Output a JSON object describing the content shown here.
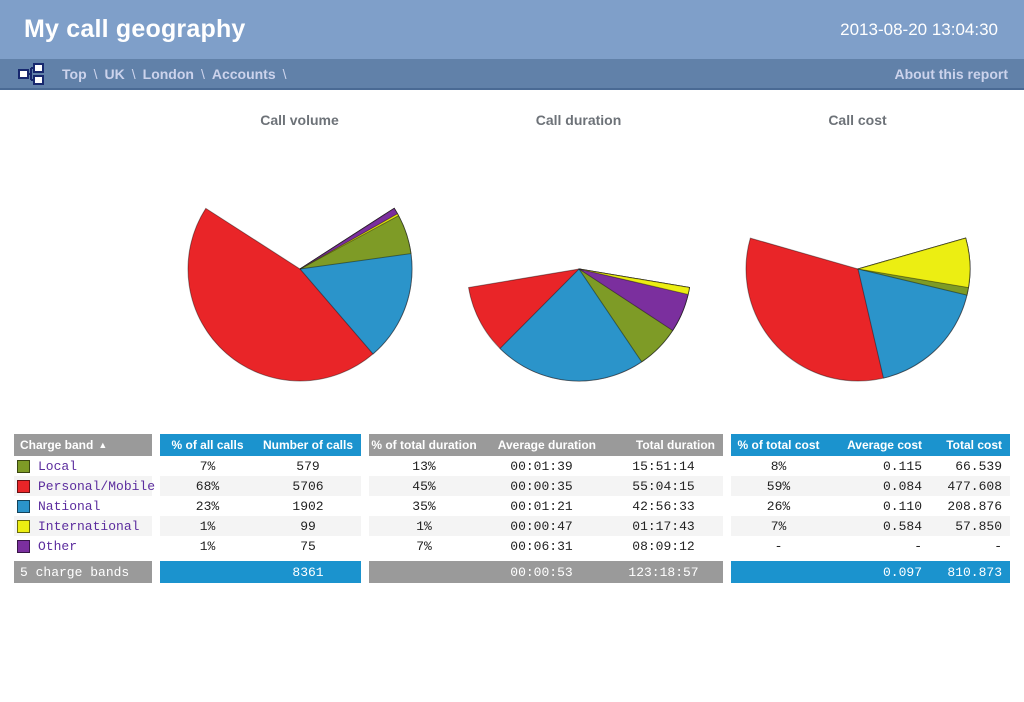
{
  "header": {
    "title": "My call geography",
    "timestamp": "2013-08-20  13:04:30"
  },
  "breadcrumb": {
    "items": [
      "Top",
      "UK",
      "London",
      "Accounts"
    ],
    "separator": "\\",
    "about_label": "About this report"
  },
  "colors": {
    "banner": "#7f9fc9",
    "breadcrumb_bar": "#6181a9",
    "table_header_blue": "#1b93ce",
    "table_header_gray": "#9a9a9a",
    "bands": {
      "Local": "#7e9b26",
      "Personal/Mobile": "#e92528",
      "National": "#2b94ca",
      "International": "#ecee12",
      "Other": "#7b2f9e"
    }
  },
  "chart_data": [
    {
      "type": "pie",
      "title": "Call volume",
      "slices": [
        {
          "label": "Local",
          "value": 579,
          "pct": 6.9
        },
        {
          "label": "Personal/Mobile",
          "value": 5706,
          "pct": 68.2
        },
        {
          "label": "National",
          "value": 1902,
          "pct": 22.8
        },
        {
          "label": "International",
          "value": 99,
          "pct": 1.2
        },
        {
          "label": "Other",
          "value": 75,
          "pct": 0.9
        }
      ]
    },
    {
      "type": "pie",
      "title": "Call duration",
      "slices": [
        {
          "label": "Local",
          "value": "15:51:14",
          "pct": 12.9
        },
        {
          "label": "Personal/Mobile",
          "value": "55:04:15",
          "pct": 44.7
        },
        {
          "label": "National",
          "value": "42:56:33",
          "pct": 34.8
        },
        {
          "label": "International",
          "value": "01:17:43",
          "pct": 1.0
        },
        {
          "label": "Other",
          "value": "08:09:12",
          "pct": 6.6
        }
      ]
    },
    {
      "type": "pie",
      "title": "Call cost",
      "slices": [
        {
          "label": "Local",
          "value": 66.539,
          "pct": 8.2
        },
        {
          "label": "Personal/Mobile",
          "value": 477.608,
          "pct": 58.9
        },
        {
          "label": "National",
          "value": 208.876,
          "pct": 25.8
        },
        {
          "label": "International",
          "value": 57.85,
          "pct": 7.1
        },
        {
          "label": "Other",
          "value": 0,
          "pct": 0
        }
      ]
    }
  ],
  "table": {
    "headers": {
      "charge_band": "Charge band",
      "sort_arrow": "▲",
      "pct_calls": "% of all calls",
      "calls": "Number of calls",
      "pct_duration": "% of total duration",
      "avg_duration": "Average duration",
      "total_duration": "Total duration",
      "pct_cost": "% of total cost",
      "avg_cost": "Average cost",
      "total_cost": "Total cost"
    },
    "rows": [
      {
        "band": "Local",
        "pct_calls": "7%",
        "calls": "579",
        "pct_duration": "13%",
        "avg_duration": "00:01:39",
        "total_duration": "15:51:14",
        "pct_cost": "8%",
        "avg_cost": "0.115",
        "total_cost": "66.539"
      },
      {
        "band": "Personal/Mobile",
        "pct_calls": "68%",
        "calls": "5706",
        "pct_duration": "45%",
        "avg_duration": "00:00:35",
        "total_duration": "55:04:15",
        "pct_cost": "59%",
        "avg_cost": "0.084",
        "total_cost": "477.608"
      },
      {
        "band": "National",
        "pct_calls": "23%",
        "calls": "1902",
        "pct_duration": "35%",
        "avg_duration": "00:01:21",
        "total_duration": "42:56:33",
        "pct_cost": "26%",
        "avg_cost": "0.110",
        "total_cost": "208.876"
      },
      {
        "band": "International",
        "pct_calls": "1%",
        "calls": "99",
        "pct_duration": "1%",
        "avg_duration": "00:00:47",
        "total_duration": "01:17:43",
        "pct_cost": "7%",
        "avg_cost": "0.584",
        "total_cost": "57.850"
      },
      {
        "band": "Other",
        "pct_calls": "1%",
        "calls": "75",
        "pct_duration": "7%",
        "avg_duration": "00:06:31",
        "total_duration": "08:09:12",
        "pct_cost": "-",
        "avg_cost": "-",
        "total_cost": "-"
      }
    ],
    "footer": {
      "label": "5 charge bands",
      "calls": "8361",
      "avg_duration": "00:00:53",
      "total_duration": "123:18:57",
      "avg_cost": "0.097",
      "total_cost": "810.873"
    }
  }
}
